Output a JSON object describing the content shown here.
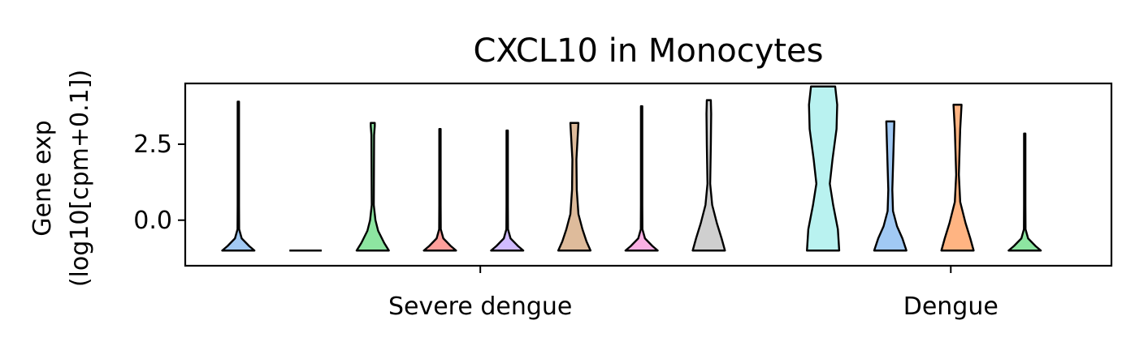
{
  "chart_data": {
    "type": "violin",
    "title": "CXCL10 in Monocytes",
    "ylabel_line1": "Gene exp",
    "ylabel_line2": "(log10[cpm+0.1])",
    "ylim": [
      -1.5,
      4.5
    ],
    "yticks": [
      {
        "value": 0.0,
        "label": "0.0"
      },
      {
        "value": 2.5,
        "label": "2.5"
      }
    ],
    "groups": [
      {
        "label": "Severe dengue",
        "x": 4.5
      },
      {
        "label": "Dengue",
        "x": 11.5
      }
    ],
    "xlim": [
      0.11,
      13.89
    ],
    "violins": [
      {
        "x": 0.9,
        "color": "#a1c9f4",
        "min": -1.0,
        "max": 3.9,
        "profile": [
          [
            -1.0,
            0.24
          ],
          [
            -0.85,
            0.16
          ],
          [
            -0.6,
            0.05
          ],
          [
            -0.3,
            0.012
          ],
          [
            0.5,
            0.01
          ],
          [
            3.9,
            0.01
          ]
        ]
      },
      {
        "x": 1.9,
        "color": "#a1c9f4",
        "min": -1.0,
        "max": -1.0,
        "profile": [
          [
            -1.0,
            0.24
          ]
        ]
      },
      {
        "x": 2.9,
        "color": "#8de5a1",
        "min": -1.0,
        "max": 3.2,
        "profile": [
          [
            -1.0,
            0.24
          ],
          [
            -0.75,
            0.17
          ],
          [
            -0.35,
            0.08
          ],
          [
            0.0,
            0.04
          ],
          [
            0.5,
            0.015
          ],
          [
            2.8,
            0.02
          ],
          [
            3.1,
            0.03
          ],
          [
            3.2,
            0.03
          ]
        ]
      },
      {
        "x": 3.9,
        "color": "#ff9f9b",
        "min": -1.0,
        "max": 3.0,
        "profile": [
          [
            -1.0,
            0.24
          ],
          [
            -0.85,
            0.16
          ],
          [
            -0.6,
            0.05
          ],
          [
            -0.3,
            0.012
          ],
          [
            0.5,
            0.01
          ],
          [
            3.0,
            0.01
          ]
        ]
      },
      {
        "x": 4.9,
        "color": "#d0bbff",
        "min": -1.0,
        "max": 2.95,
        "profile": [
          [
            -1.0,
            0.24
          ],
          [
            -0.85,
            0.16
          ],
          [
            -0.6,
            0.05
          ],
          [
            -0.3,
            0.012
          ],
          [
            0.5,
            0.01
          ],
          [
            2.95,
            0.01
          ]
        ]
      },
      {
        "x": 5.9,
        "color": "#debb9b",
        "min": -1.0,
        "max": 3.2,
        "profile": [
          [
            -1.0,
            0.24
          ],
          [
            -0.7,
            0.18
          ],
          [
            -0.3,
            0.12
          ],
          [
            0.2,
            0.06
          ],
          [
            1.0,
            0.035
          ],
          [
            2.0,
            0.03
          ],
          [
            2.8,
            0.05
          ],
          [
            3.2,
            0.06
          ]
        ]
      },
      {
        "x": 6.9,
        "color": "#fab0e4",
        "min": -1.0,
        "max": 3.75,
        "profile": [
          [
            -1.0,
            0.24
          ],
          [
            -0.85,
            0.16
          ],
          [
            -0.6,
            0.05
          ],
          [
            -0.3,
            0.012
          ],
          [
            0.5,
            0.01
          ],
          [
            3.75,
            0.01
          ]
        ]
      },
      {
        "x": 7.9,
        "color": "#cfcfcf",
        "min": -1.0,
        "max": 3.95,
        "profile": [
          [
            -1.0,
            0.24
          ],
          [
            -0.6,
            0.19
          ],
          [
            -0.1,
            0.12
          ],
          [
            0.5,
            0.05
          ],
          [
            1.2,
            0.02
          ],
          [
            2.5,
            0.03
          ],
          [
            3.5,
            0.035
          ],
          [
            3.95,
            0.03
          ]
        ]
      },
      {
        "x": 9.6,
        "color": "#b9f2f0",
        "min": -1.0,
        "max": 4.4,
        "profile": [
          [
            -1.0,
            0.24
          ],
          [
            -0.3,
            0.22
          ],
          [
            0.5,
            0.15
          ],
          [
            1.2,
            0.1
          ],
          [
            2.0,
            0.14
          ],
          [
            3.0,
            0.2
          ],
          [
            3.8,
            0.21
          ],
          [
            4.4,
            0.18
          ]
        ]
      },
      {
        "x": 10.6,
        "color": "#a1c9f4",
        "min": -1.0,
        "max": 3.25,
        "profile": [
          [
            -1.0,
            0.24
          ],
          [
            -0.6,
            0.18
          ],
          [
            -0.2,
            0.1
          ],
          [
            0.3,
            0.04
          ],
          [
            1.0,
            0.03
          ],
          [
            2.5,
            0.05
          ],
          [
            3.25,
            0.06
          ]
        ]
      },
      {
        "x": 11.6,
        "color": "#ffb482",
        "min": -1.0,
        "max": 3.8,
        "profile": [
          [
            -1.0,
            0.24
          ],
          [
            -0.6,
            0.19
          ],
          [
            -0.1,
            0.12
          ],
          [
            0.6,
            0.04
          ],
          [
            1.5,
            0.02
          ],
          [
            3.0,
            0.04
          ],
          [
            3.8,
            0.06
          ]
        ]
      },
      {
        "x": 12.6,
        "color": "#8de5a1",
        "min": -1.0,
        "max": 2.85,
        "profile": [
          [
            -1.0,
            0.24
          ],
          [
            -0.85,
            0.16
          ],
          [
            -0.6,
            0.05
          ],
          [
            -0.3,
            0.012
          ],
          [
            0.5,
            0.01
          ],
          [
            2.85,
            0.01
          ]
        ]
      }
    ]
  }
}
